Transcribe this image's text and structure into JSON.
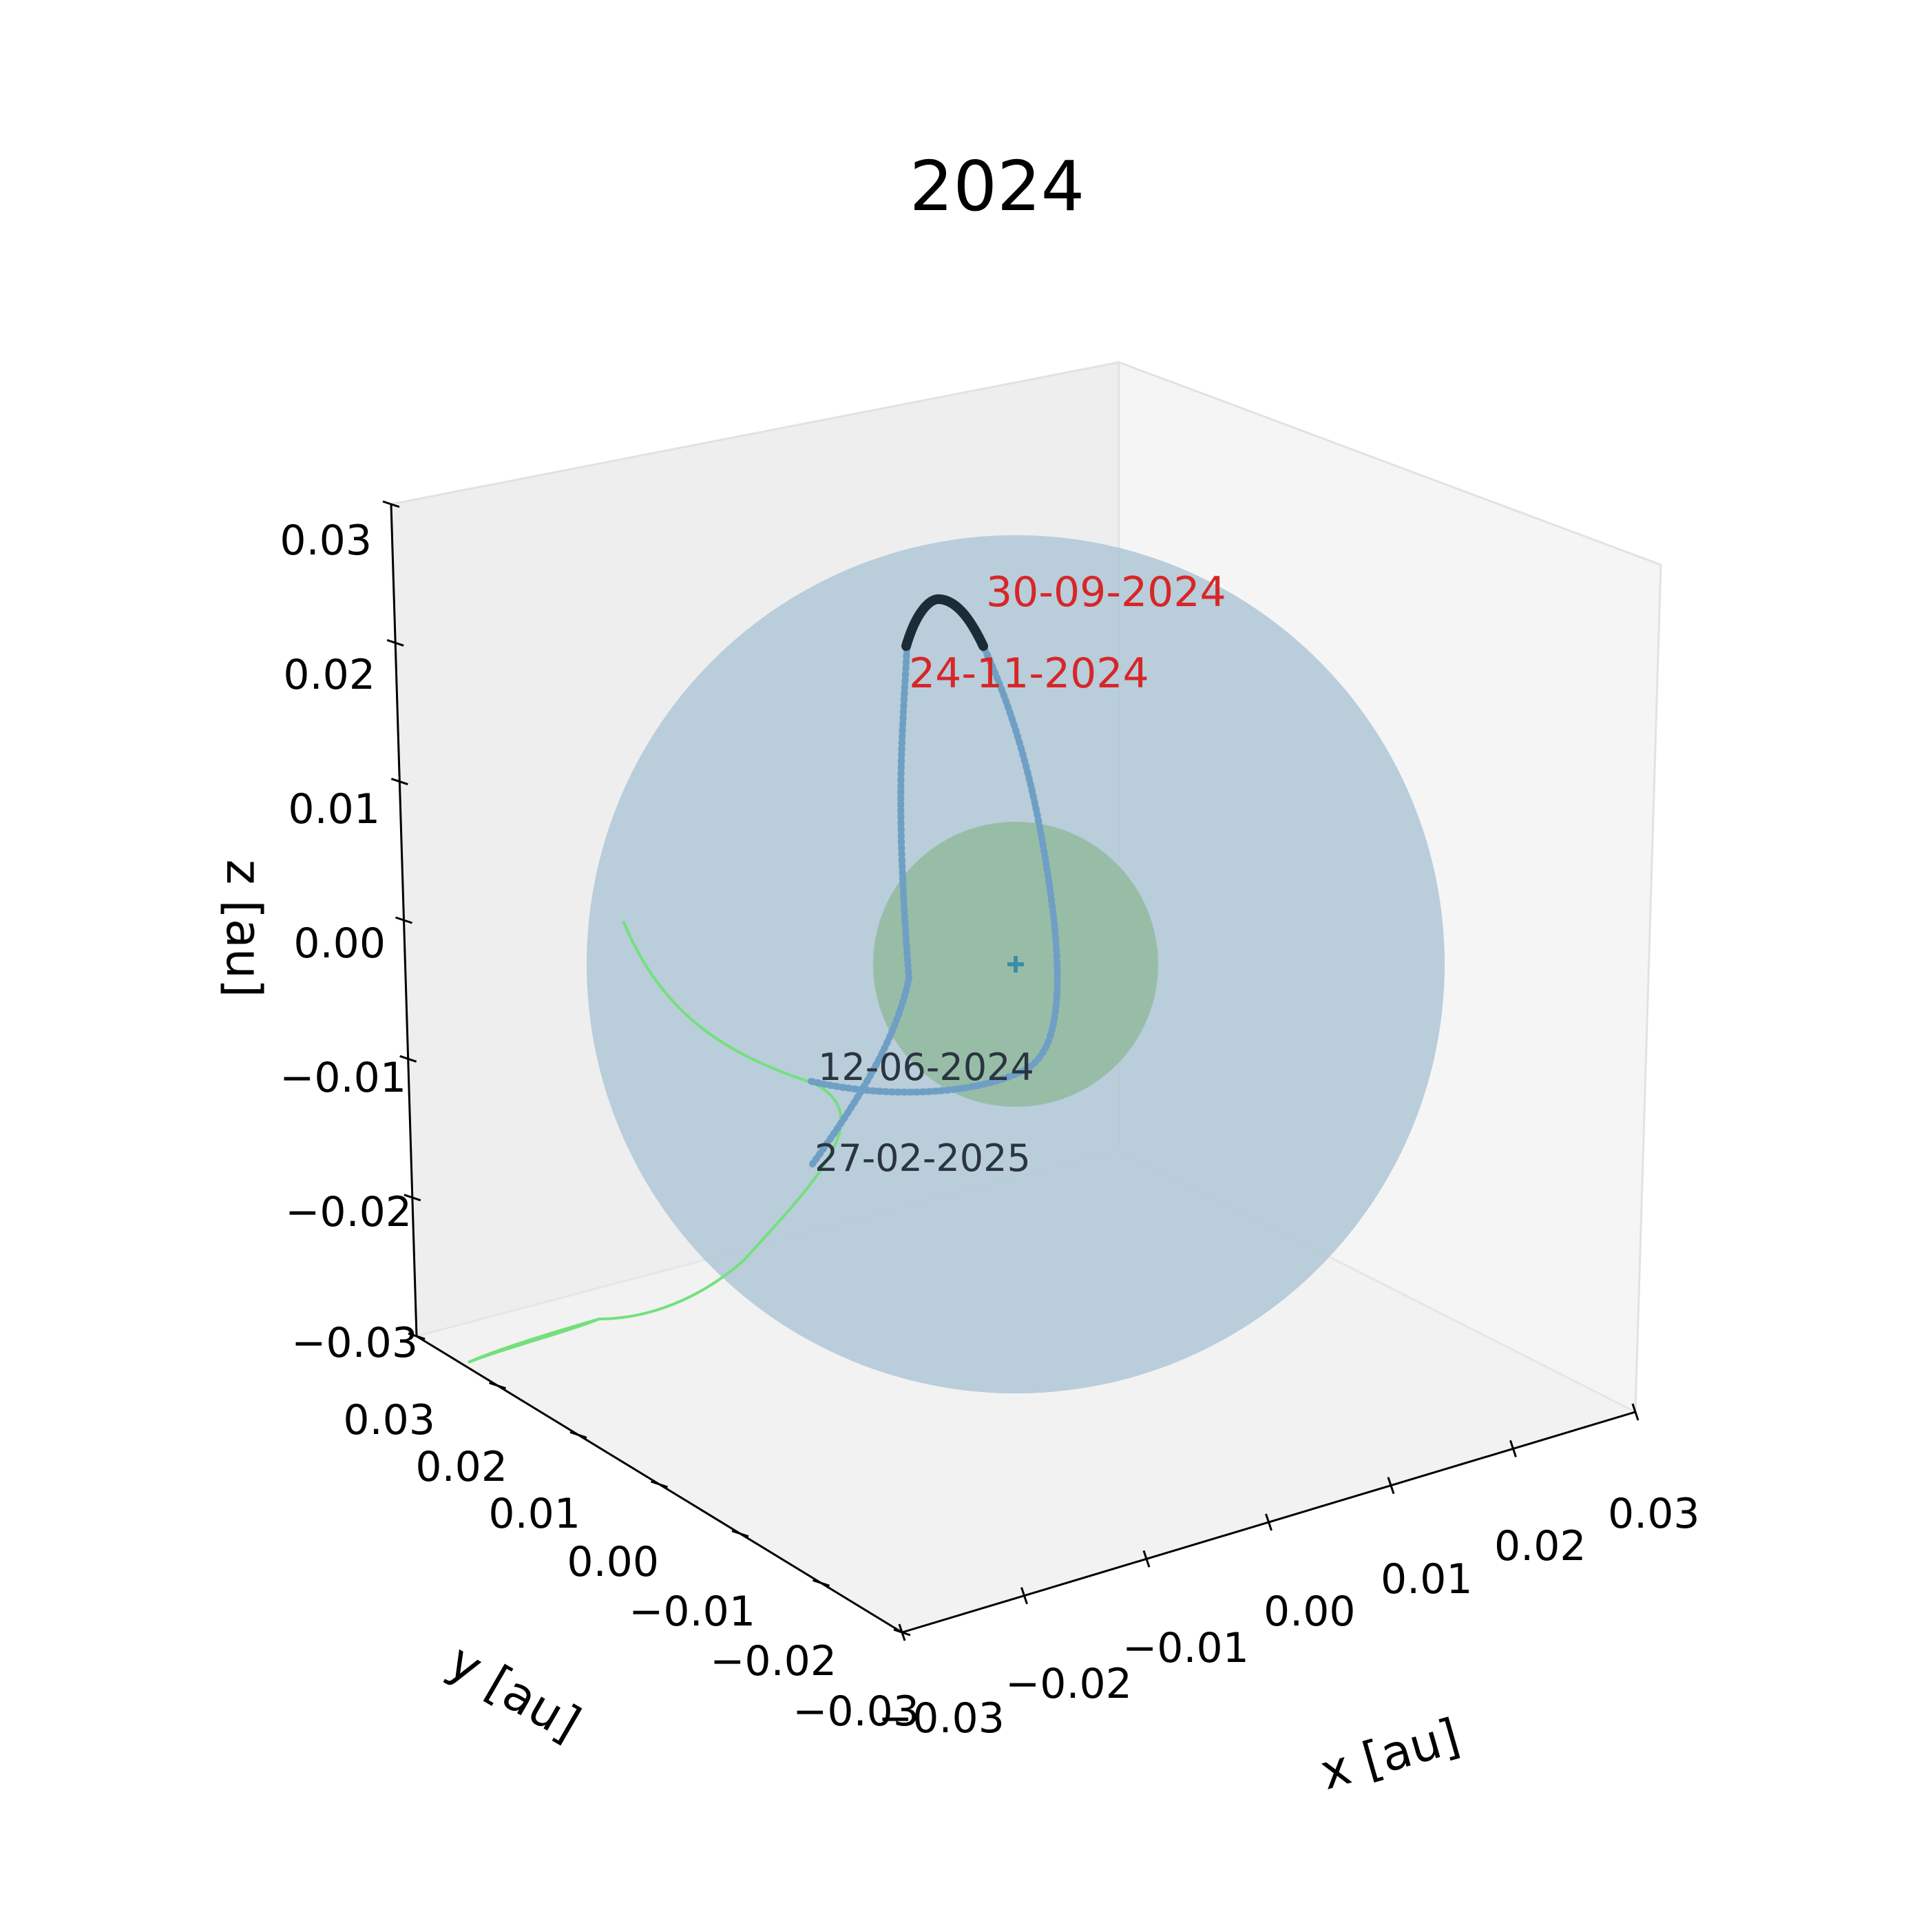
{
  "chart_data": {
    "type": "scatter",
    "projection": "3d",
    "title": "2024",
    "xlabel": "x [au]",
    "ylabel": "y [au]",
    "zlabel": "z [au]",
    "xlim": [
      -0.03,
      0.03
    ],
    "ylim": [
      -0.03,
      0.03
    ],
    "zlim": [
      -0.03,
      0.03
    ],
    "x_ticks": [
      "−0.03",
      "−0.02",
      "−0.01",
      "0.00",
      "0.01",
      "0.02",
      "0.03"
    ],
    "y_ticks": [
      "−0.03",
      "−0.02",
      "−0.01",
      "0.00",
      "0.01",
      "0.02",
      "0.03"
    ],
    "z_ticks": [
      "−0.03",
      "−0.02",
      "−0.01",
      "0.00",
      "0.01",
      "0.02",
      "0.03"
    ],
    "grid": false,
    "annotations": [
      {
        "text": "30-09-2024",
        "color": "#d62728"
      },
      {
        "text": "24-11-2024",
        "color": "#d62728"
      },
      {
        "text": "12-06-2024",
        "color": "#2a3540"
      },
      {
        "text": "27-02-2025",
        "color": "#2a3540"
      }
    ],
    "colors": {
      "outer_sphere": "#b2c9d8",
      "inner_sphere": "#93bb9f",
      "trajectory": "#74e07c",
      "dotted_path": "#6f9fc4",
      "highlight_arc": "#1c2c36",
      "center_marker": "#3b8ea8"
    }
  }
}
